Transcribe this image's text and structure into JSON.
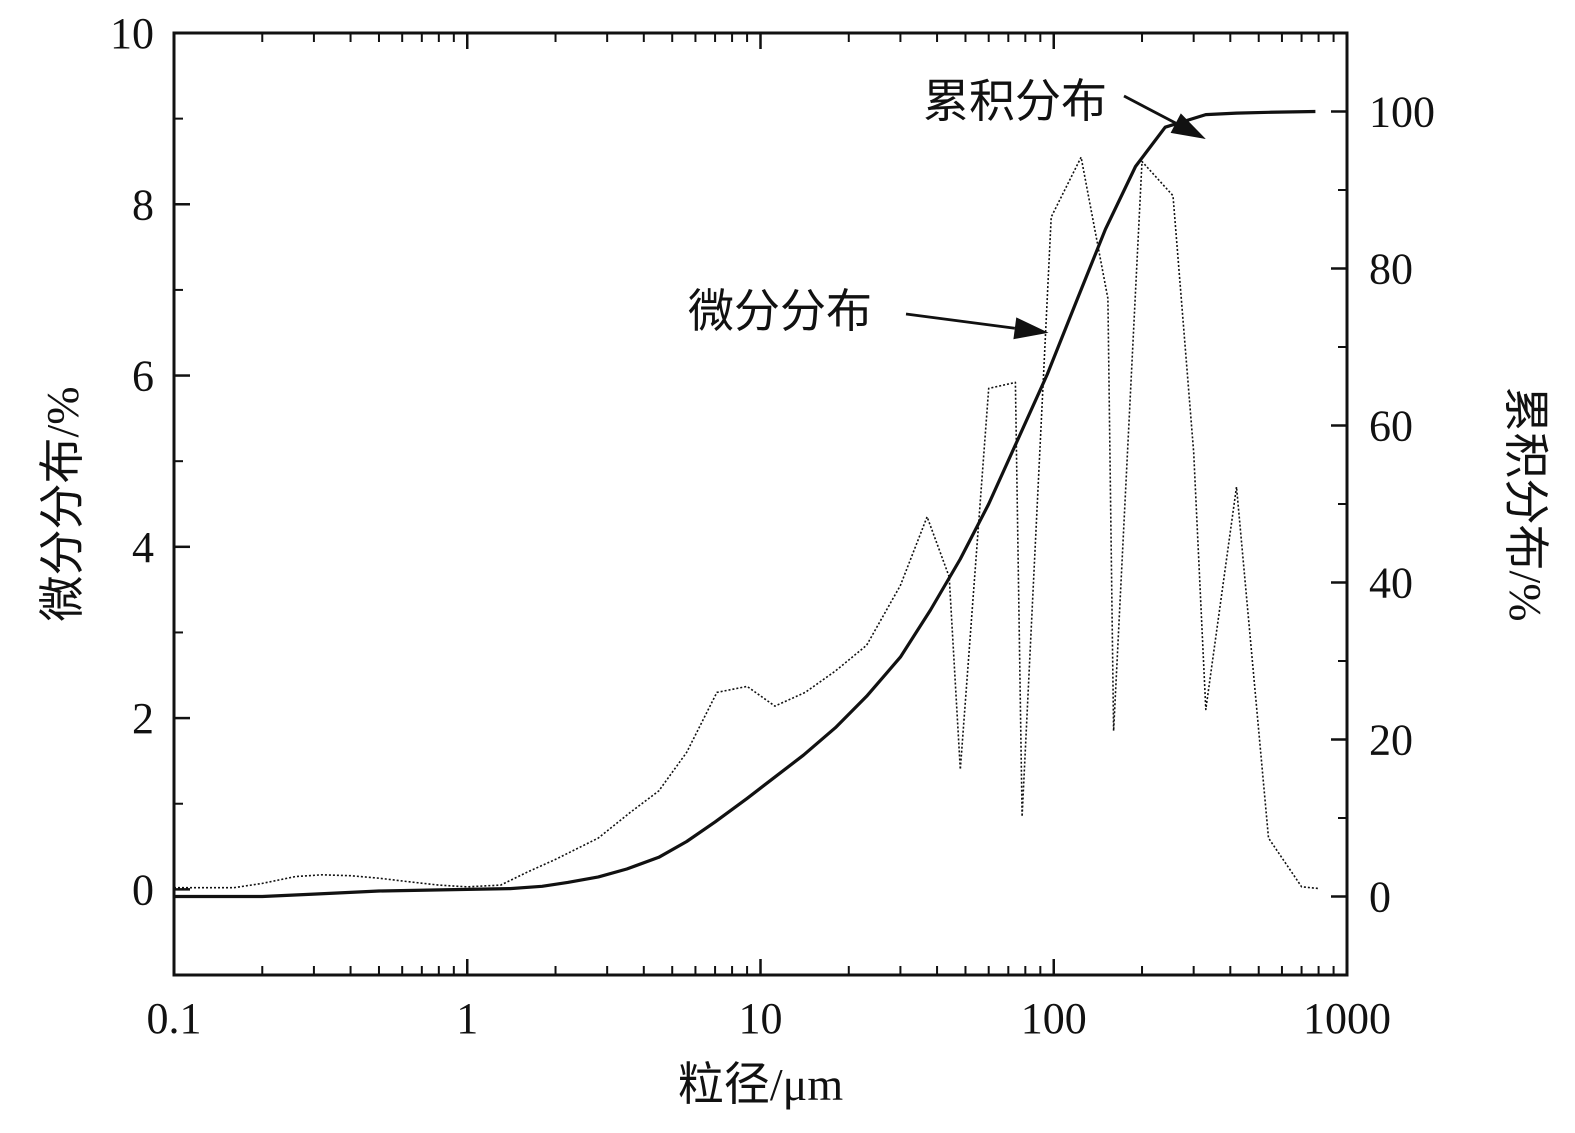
{
  "chart_data": {
    "type": "line",
    "title": "",
    "xlabel": "粒径/μm",
    "ylabel_left": "微分分布/%",
    "ylabel_right": "累积分布/%",
    "x_scale": "log",
    "xlim": [
      0.1,
      1000
    ],
    "ylim_left": [
      -1,
      10
    ],
    "ylim_right": [
      -10,
      110
    ],
    "x_ticks": [
      "0.1",
      "1",
      "10",
      "100",
      "1000"
    ],
    "y_left_ticks": [
      "0",
      "2",
      "4",
      "6",
      "8",
      "10"
    ],
    "y_right_ticks": [
      "0",
      "20",
      "40",
      "60",
      "80",
      "100"
    ],
    "grid": false,
    "series": [
      {
        "name": "微分分布",
        "axis": "left",
        "style": "dotted",
        "x": [
          0.1,
          0.16,
          0.2,
          0.26,
          0.32,
          0.4,
          0.5,
          0.63,
          0.8,
          1.0,
          1.3,
          1.6,
          2.0,
          2.8,
          3.6,
          4.5,
          5.6,
          7.1,
          9.0,
          11.2,
          14.2,
          18,
          23,
          30,
          37,
          44,
          48,
          60,
          74,
          78,
          98,
          124,
          153,
          160,
          200,
          255,
          300,
          330,
          420,
          540,
          700,
          800
        ],
        "values": [
          0.02,
          0.02,
          0.07,
          0.15,
          0.17,
          0.16,
          0.13,
          0.09,
          0.05,
          0.03,
          0.05,
          0.2,
          0.35,
          0.6,
          0.9,
          1.15,
          1.6,
          2.3,
          2.37,
          2.14,
          2.3,
          2.55,
          2.85,
          3.55,
          4.35,
          3.65,
          1.4,
          5.85,
          5.92,
          0.85,
          7.85,
          8.55,
          6.9,
          1.85,
          8.5,
          8.1,
          5.1,
          2.1,
          4.7,
          0.6,
          0.03,
          0.01
        ]
      },
      {
        "name": "累积分布",
        "axis": "right",
        "style": "solid",
        "x": [
          0.1,
          0.2,
          0.3,
          0.5,
          1.0,
          1.4,
          1.8,
          2.2,
          2.8,
          3.5,
          4.5,
          5.6,
          7.0,
          9.0,
          11,
          14,
          18,
          23,
          30,
          38,
          48,
          60,
          75,
          95,
          120,
          150,
          190,
          240,
          330,
          420,
          540,
          780
        ],
        "values": [
          0,
          0,
          0.3,
          0.7,
          0.9,
          1.0,
          1.3,
          1.8,
          2.5,
          3.5,
          5.0,
          7.0,
          9.5,
          12.5,
          15,
          18,
          21.5,
          25.5,
          30.5,
          36.5,
          43,
          50,
          58,
          66.5,
          76,
          85,
          93,
          98,
          99.6,
          99.8,
          99.9,
          100
        ]
      }
    ],
    "annotations": [
      {
        "text": "累积分布",
        "arrow_to_x": 330,
        "arrow_to_y_right": 96.5
      },
      {
        "text": "微分分布",
        "arrow_to_x": 96,
        "arrow_to_y_left": 6.5
      }
    ]
  }
}
